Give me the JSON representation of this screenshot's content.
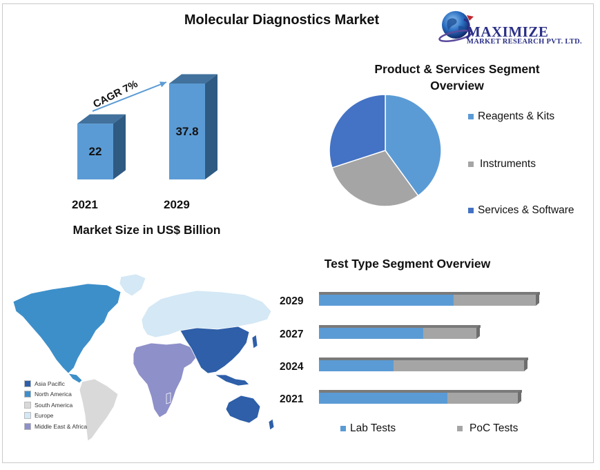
{
  "title": "Molecular Diagnostics Market",
  "logo": {
    "name": "MAXIMIZE",
    "subtitle": "MARKET RESEARCH PVT. LTD."
  },
  "colors": {
    "blue": "#5b9bd5",
    "dark_blue": "#4472c4",
    "gray": "#a5a5a5",
    "bar_dark": "#41719c"
  },
  "chart_data": [
    {
      "type": "bar",
      "title": "Market Size in US$ Billion",
      "categories": [
        "2021",
        "2029"
      ],
      "values": [
        22,
        37.8
      ],
      "annotation": "CAGR 7%"
    },
    {
      "type": "pie",
      "title": "Product & Services Segment Overview",
      "labels": [
        "Reagents & Kits",
        "Instruments",
        "Services & Software"
      ],
      "values": [
        40,
        30,
        30
      ],
      "colors": [
        "#5b9bd5",
        "#a5a5a5",
        "#4472c4"
      ]
    },
    {
      "type": "bar",
      "orientation": "horizontal",
      "stacked": true,
      "title": "Test Type Segment Overview",
      "categories": [
        "2029",
        "2027",
        "2024",
        "2021"
      ],
      "series": [
        {
          "name": "Lab Tests",
          "values": [
            195,
            151,
            108,
            186
          ],
          "color": "#5b9bd5"
        },
        {
          "name": "PoC Tests",
          "values": [
            119,
            77,
            189,
            102
          ],
          "color": "#a5a5a5"
        }
      ]
    }
  ],
  "map": {
    "legend": [
      {
        "label": "Asia Pacific",
        "color": "#2e5fa8"
      },
      {
        "label": "North America",
        "color": "#3d8fc9"
      },
      {
        "label": "South America",
        "color": "#d9d9d9"
      },
      {
        "label": "Europe",
        "color": "#d4e8f5"
      },
      {
        "label": "Middle East & Africa",
        "color": "#8e90c9"
      }
    ]
  }
}
